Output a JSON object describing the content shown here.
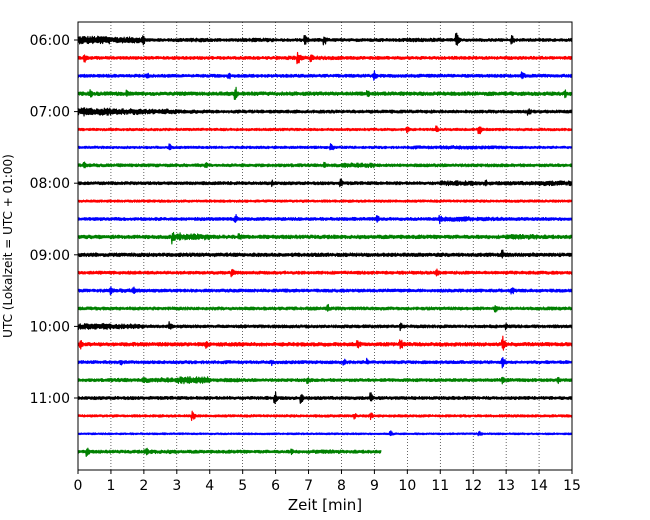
{
  "chart_data": {
    "type": "line",
    "xlabel": "Zeit  [min]",
    "ylabel": "UTC (Lokalzeit = UTC + 01:00)",
    "xlim": [
      0,
      15
    ],
    "x_ticks": [
      "0",
      "1",
      "2",
      "3",
      "4",
      "5",
      "6",
      "7",
      "8",
      "9",
      "10",
      "11",
      "12",
      "13",
      "14",
      "15"
    ],
    "y_ticks": [
      "06:00",
      "07:00",
      "08:00",
      "09:00",
      "10:00",
      "11:00"
    ],
    "grid": "vertical dotted",
    "row_interval_min": 15,
    "first_row": "06:00",
    "color_cycle": [
      "#000000",
      "#ff0000",
      "#0000ff",
      "#008000"
    ],
    "series": [
      {
        "values": [
          1.3,
          1.0,
          0.5,
          0.6,
          0.5,
          0.6,
          0.5,
          0.5,
          0.5,
          0.5,
          0.6,
          0.5,
          0.5,
          0.5,
          0.5,
          0.5
        ],
        "events": [
          [
            2.0,
            1.6
          ],
          [
            6.9,
            2.2
          ],
          [
            7.5,
            1.8
          ],
          [
            11.5,
            2.4
          ],
          [
            13.2,
            1.6
          ]
        ]
      },
      {
        "values": [
          0.5,
          0.5,
          0.5,
          0.5,
          0.5,
          0.5,
          0.6,
          0.6,
          0.5,
          0.5,
          0.5,
          0.5,
          0.5,
          0.5,
          0.5,
          0.5
        ],
        "events": [
          [
            0.2,
            1.8
          ],
          [
            6.7,
            2.0
          ],
          [
            7.1,
            1.6
          ]
        ]
      },
      {
        "values": [
          0.5,
          0.5,
          0.5,
          0.5,
          0.5,
          0.5,
          0.5,
          0.5,
          0.5,
          0.5,
          0.5,
          0.5,
          0.5,
          0.5,
          0.5,
          0.5
        ],
        "events": [
          [
            2.1,
            1.4
          ],
          [
            4.6,
            1.2
          ],
          [
            9.0,
            1.8
          ],
          [
            13.5,
            1.6
          ]
        ]
      },
      {
        "values": [
          0.6,
          0.6,
          0.6,
          0.6,
          0.6,
          0.6,
          0.6,
          0.6,
          0.6,
          0.6,
          0.6,
          0.6,
          0.6,
          0.6,
          0.6,
          0.6
        ],
        "events": [
          [
            0.4,
            1.4
          ],
          [
            1.5,
            1.2
          ],
          [
            4.8,
            2.2
          ],
          [
            8.8,
            1.4
          ],
          [
            14.8,
            1.4
          ]
        ]
      },
      {
        "values": [
          1.2,
          1.0,
          0.8,
          0.6,
          0.5,
          0.5,
          0.5,
          0.5,
          0.5,
          0.5,
          0.5,
          0.5,
          0.5,
          0.5,
          0.5,
          0.5
        ],
        "events": [
          [
            0.2,
            1.6
          ],
          [
            2.7,
            1.2
          ],
          [
            13.7,
            1.4
          ]
        ]
      },
      {
        "values": [
          0.4,
          0.4,
          0.4,
          0.4,
          0.4,
          0.4,
          0.4,
          0.4,
          0.4,
          0.4,
          0.4,
          0.4,
          0.4,
          0.4,
          0.4,
          0.4
        ],
        "events": [
          [
            10.0,
            1.2
          ],
          [
            10.9,
            1.2
          ],
          [
            12.2,
            1.8
          ]
        ]
      },
      {
        "values": [
          0.4,
          0.4,
          0.4,
          0.4,
          0.4,
          0.4,
          0.4,
          0.4,
          0.4,
          0.4,
          0.5,
          0.6,
          0.5,
          0.4,
          0.4,
          0.4
        ],
        "events": [
          [
            2.8,
            1.2
          ],
          [
            7.7,
            1.4
          ]
        ]
      },
      {
        "values": [
          0.5,
          0.5,
          0.5,
          0.5,
          0.5,
          0.5,
          0.5,
          0.5,
          0.8,
          0.5,
          0.5,
          0.5,
          0.5,
          0.5,
          0.5,
          0.5
        ],
        "events": [
          [
            0.2,
            1.4
          ],
          [
            3.9,
            1.2
          ],
          [
            7.5,
            1.4
          ],
          [
            8.1,
            1.2
          ]
        ]
      },
      {
        "values": [
          0.5,
          0.5,
          0.5,
          0.5,
          0.5,
          0.5,
          0.5,
          0.5,
          0.5,
          0.5,
          0.5,
          0.8,
          0.6,
          0.6,
          0.8,
          0.6
        ],
        "events": [
          [
            5.9,
            1.2
          ],
          [
            8.0,
            1.4
          ],
          [
            12.4,
            1.2
          ]
        ]
      },
      {
        "values": [
          0.4,
          0.4,
          0.4,
          0.4,
          0.4,
          0.4,
          0.4,
          0.4,
          0.4,
          0.4,
          0.4,
          0.4,
          0.4,
          0.4,
          0.4,
          0.4
        ],
        "events": []
      },
      {
        "values": [
          0.5,
          0.5,
          0.5,
          0.5,
          0.5,
          0.5,
          0.5,
          0.5,
          0.5,
          0.5,
          0.5,
          0.8,
          0.6,
          0.5,
          0.5,
          0.5
        ],
        "events": [
          [
            4.8,
            1.6
          ],
          [
            9.1,
            1.4
          ],
          [
            11.0,
            1.6
          ]
        ]
      },
      {
        "values": [
          0.6,
          0.6,
          0.6,
          1.0,
          0.6,
          0.6,
          0.6,
          0.6,
          0.6,
          0.6,
          0.6,
          0.6,
          0.6,
          0.8,
          0.6,
          0.6
        ],
        "events": [
          [
            2.9,
            2.4
          ],
          [
            3.1,
            1.8
          ],
          [
            4.9,
            1.6
          ]
        ]
      },
      {
        "values": [
          0.6,
          0.6,
          0.6,
          0.6,
          0.6,
          0.6,
          0.6,
          0.6,
          0.6,
          0.6,
          0.6,
          0.6,
          0.6,
          0.6,
          0.6,
          0.6
        ],
        "events": [
          [
            12.9,
            1.6
          ]
        ]
      },
      {
        "values": [
          0.5,
          0.5,
          0.5,
          0.5,
          0.5,
          0.5,
          0.5,
          0.5,
          0.5,
          0.5,
          0.5,
          0.5,
          0.5,
          0.5,
          0.5,
          0.5
        ],
        "events": [
          [
            4.7,
            1.4
          ],
          [
            10.9,
            1.6
          ]
        ]
      },
      {
        "values": [
          0.5,
          0.6,
          0.5,
          0.5,
          0.5,
          0.5,
          0.5,
          0.5,
          0.5,
          0.5,
          0.5,
          0.5,
          0.5,
          0.5,
          0.5,
          0.5
        ],
        "events": [
          [
            1.0,
            1.6
          ],
          [
            1.7,
            1.2
          ],
          [
            13.2,
            1.4
          ]
        ]
      },
      {
        "values": [
          0.5,
          0.5,
          0.5,
          0.5,
          0.5,
          0.5,
          0.5,
          0.5,
          0.5,
          0.5,
          0.5,
          0.5,
          0.5,
          0.5,
          0.5,
          0.5
        ],
        "events": [
          [
            7.6,
            1.4
          ],
          [
            12.7,
            1.2
          ]
        ]
      },
      {
        "values": [
          1.0,
          0.8,
          0.5,
          0.5,
          0.5,
          0.5,
          0.5,
          0.5,
          0.5,
          0.5,
          0.5,
          0.5,
          0.5,
          0.5,
          0.5,
          0.5
        ],
        "events": [
          [
            2.8,
            1.6
          ],
          [
            9.8,
            1.4
          ],
          [
            13.0,
            1.2
          ]
        ]
      },
      {
        "values": [
          0.6,
          0.6,
          0.6,
          0.6,
          0.6,
          0.6,
          0.6,
          0.6,
          0.6,
          0.6,
          0.6,
          0.6,
          0.6,
          0.6,
          0.6,
          0.6
        ],
        "events": [
          [
            0.1,
            1.6
          ],
          [
            3.9,
            1.4
          ],
          [
            8.5,
            2.0
          ],
          [
            9.8,
            2.4
          ],
          [
            12.9,
            3.0
          ]
        ]
      },
      {
        "values": [
          0.5,
          0.5,
          0.5,
          0.5,
          0.5,
          0.5,
          0.5,
          0.5,
          0.5,
          0.5,
          0.5,
          0.5,
          0.5,
          0.5,
          0.5,
          0.5
        ],
        "events": [
          [
            1.3,
            1.4
          ],
          [
            5.9,
            1.2
          ],
          [
            8.1,
            1.2
          ],
          [
            8.8,
            1.4
          ],
          [
            12.9,
            2.0
          ]
        ]
      },
      {
        "values": [
          0.5,
          0.6,
          0.8,
          1.2,
          0.6,
          0.5,
          0.5,
          0.5,
          0.5,
          0.5,
          0.5,
          0.5,
          0.5,
          0.5,
          0.5,
          0.5
        ],
        "events": [
          [
            2.0,
            1.2
          ],
          [
            7.0,
            1.2
          ],
          [
            12.9,
            1.6
          ],
          [
            14.6,
            1.2
          ]
        ]
      },
      {
        "values": [
          0.5,
          0.5,
          0.5,
          0.5,
          0.5,
          0.5,
          0.5,
          0.5,
          0.5,
          0.5,
          0.5,
          0.5,
          0.5,
          0.5,
          0.5,
          0.5
        ],
        "events": [
          [
            6.0,
            2.0
          ],
          [
            6.8,
            1.8
          ],
          [
            8.9,
            1.8
          ]
        ]
      },
      {
        "values": [
          0.4,
          0.4,
          0.4,
          0.4,
          0.4,
          0.4,
          0.4,
          0.4,
          0.4,
          0.4,
          0.4,
          0.4,
          0.4,
          0.4,
          0.4,
          0.4
        ],
        "events": [
          [
            3.5,
            1.6
          ],
          [
            8.4,
            1.2
          ],
          [
            8.9,
            1.4
          ]
        ]
      },
      {
        "values": [
          0.3,
          0.3,
          0.3,
          0.3,
          0.3,
          0.3,
          0.3,
          0.3,
          0.3,
          0.3,
          0.3,
          0.3,
          0.3,
          0.3,
          0.3,
          0.3
        ],
        "events": [
          [
            9.5,
            1.0
          ],
          [
            12.2,
            1.0
          ]
        ]
      },
      {
        "values": [
          0.5,
          0.5,
          0.6,
          0.5,
          0.5,
          0.5,
          0.5,
          0.6,
          0.5,
          0.5
        ],
        "end": 9.2,
        "events": [
          [
            0.3,
            1.6
          ],
          [
            2.1,
            1.4
          ],
          [
            6.5,
            1.2
          ]
        ]
      }
    ]
  }
}
